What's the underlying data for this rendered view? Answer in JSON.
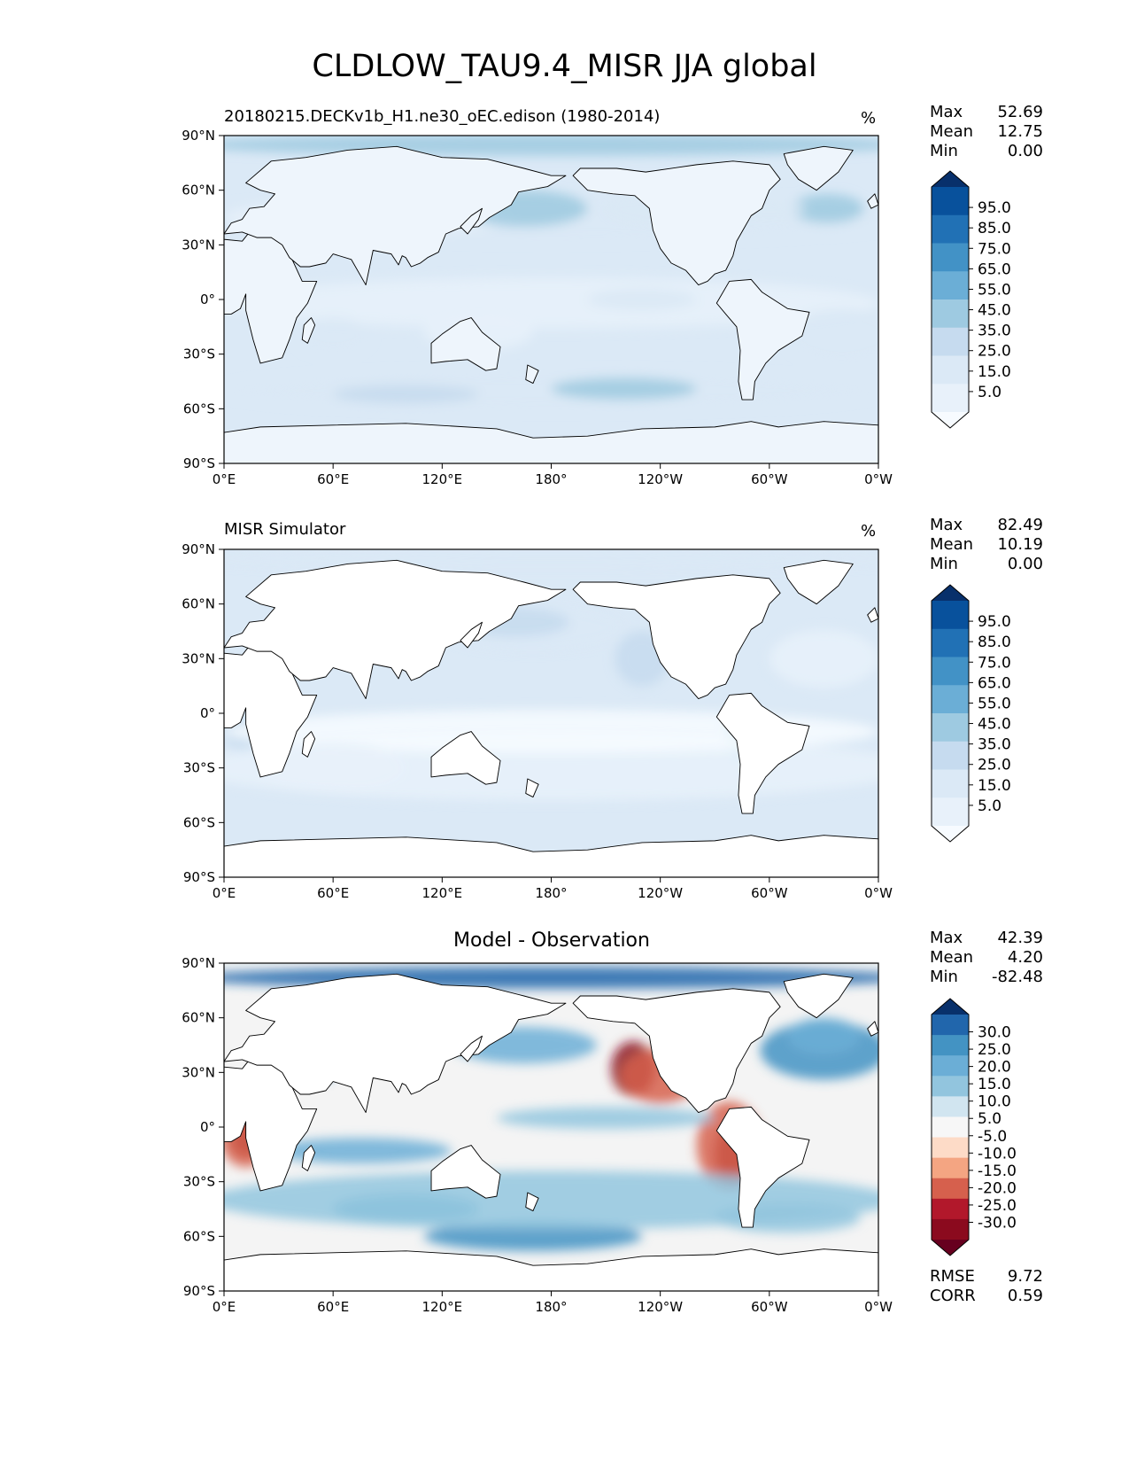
{
  "title": "CLDLOW_TAU9.4_MISR JJA global",
  "x_ticks": [
    "0°E",
    "60°E",
    "120°E",
    "180°",
    "120°W",
    "60°W",
    "0°W"
  ],
  "y_ticks": [
    "90°N",
    "60°N",
    "30°N",
    "0°",
    "30°S",
    "60°S",
    "90°S"
  ],
  "panels": [
    {
      "title": "20180215.DECKv1b_H1.ne30_oEC.edison (1980-2014)",
      "units": "%",
      "stats": [
        {
          "label": "Max",
          "value": "52.69"
        },
        {
          "label": "Mean",
          "value": "12.75"
        },
        {
          "label": "Min",
          "value": "0.00"
        }
      ],
      "colorbar": {
        "labels": [
          "95.0",
          "85.0",
          "75.0",
          "65.0",
          "55.0",
          "45.0",
          "35.0",
          "25.0",
          "15.0",
          "5.0"
        ],
        "colors": [
          "#08306b",
          "#08519c",
          "#2171b5",
          "#4292c6",
          "#6baed6",
          "#9ecae1",
          "#c6dbef",
          "#dbe9f6",
          "#e8f1fa",
          "#f7fbff"
        ]
      }
    },
    {
      "title": "MISR Simulator",
      "units": "%",
      "stats": [
        {
          "label": "Max",
          "value": "82.49"
        },
        {
          "label": "Mean",
          "value": "10.19"
        },
        {
          "label": "Min",
          "value": "0.00"
        }
      ],
      "colorbar": {
        "labels": [
          "95.0",
          "85.0",
          "75.0",
          "65.0",
          "55.0",
          "45.0",
          "35.0",
          "25.0",
          "15.0",
          "5.0"
        ],
        "colors": [
          "#08306b",
          "#08519c",
          "#2171b5",
          "#4292c6",
          "#6baed6",
          "#9ecae1",
          "#c6dbef",
          "#dbe9f6",
          "#e8f1fa",
          "#f7fbff"
        ]
      }
    },
    {
      "title": "Model - Observation",
      "units": "",
      "stats": [
        {
          "label": "Max",
          "value": "42.39"
        },
        {
          "label": "Mean",
          "value": "4.20"
        },
        {
          "label": "Min",
          "value": "-82.48"
        }
      ],
      "colorbar": {
        "labels": [
          "30.0",
          "25.0",
          "20.0",
          "15.0",
          "10.0",
          "5.0",
          "-5.0",
          "-10.0",
          "-15.0",
          "-20.0",
          "-25.0",
          "-30.0"
        ],
        "colors": [
          "#08306b",
          "#2166ac",
          "#4393c3",
          "#6baed6",
          "#92c5de",
          "#d1e5f0",
          "#f7f7f7",
          "#fddbc7",
          "#f4a582",
          "#d6604d",
          "#b2182b",
          "#8b0a1e",
          "#67001f"
        ]
      },
      "metrics": [
        {
          "label": "RMSE",
          "value": "9.72"
        },
        {
          "label": "CORR",
          "value": "0.59"
        }
      ]
    }
  ],
  "chart_data": [
    {
      "type": "heatmap",
      "title": "20180215.DECKv1b_H1.ne30_oEC.edison (1980-2014)",
      "variable": "CLDLOW_TAU9.4_MISR",
      "season": "JJA",
      "units": "%",
      "xlim": [
        0,
        360
      ],
      "ylim": [
        -90,
        90
      ],
      "levels": [
        5,
        15,
        25,
        35,
        45,
        55,
        65,
        75,
        85,
        95
      ],
      "max": 52.69,
      "mean": 12.75,
      "min": 0.0
    },
    {
      "type": "heatmap",
      "title": "MISR Simulator",
      "units": "%",
      "xlim": [
        0,
        360
      ],
      "ylim": [
        -90,
        90
      ],
      "levels": [
        5,
        15,
        25,
        35,
        45,
        55,
        65,
        75,
        85,
        95
      ],
      "max": 82.49,
      "mean": 10.19,
      "min": 0.0
    },
    {
      "type": "heatmap",
      "title": "Model - Observation",
      "xlim": [
        0,
        360
      ],
      "ylim": [
        -90,
        90
      ],
      "levels": [
        -30,
        -25,
        -20,
        -15,
        -10,
        -5,
        5,
        10,
        15,
        20,
        25,
        30
      ],
      "max": 42.39,
      "mean": 4.2,
      "min": -82.48,
      "rmse": 9.72,
      "corr": 0.59
    }
  ]
}
